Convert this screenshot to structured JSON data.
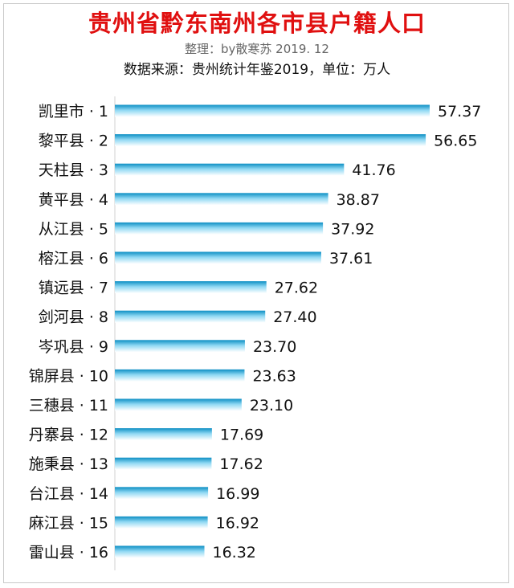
{
  "title": "贵州省黔东南州各市县户籍人口",
  "subtitle_credit": "整理：by散寒苏 2019. 12",
  "subtitle_source": "数据来源：贵州统计年鉴2019，单位：万人",
  "colors": {
    "title": "#e01010",
    "bar_top": "#0d8fc4",
    "bar_mid": "#8fd8f3",
    "bar_bottom": "#ffffff"
  },
  "chart_data": {
    "type": "bar",
    "orientation": "horizontal",
    "categories": [
      "凯里市 · 1",
      "黎平县 · 2",
      "天柱县 · 3",
      "黄平县 · 4",
      "从江县 · 5",
      "榕江县 · 6",
      "镇远县 · 7",
      "剑河县 · 8",
      "岑巩县 · 9",
      "锦屏县 · 10",
      "三穗县 · 11",
      "丹寨县 · 12",
      "施秉县 · 13",
      "台江县 · 14",
      "麻江县 · 15",
      "雷山县 · 16"
    ],
    "values": [
      57.37,
      56.65,
      41.76,
      38.87,
      37.92,
      37.61,
      27.62,
      27.4,
      23.7,
      23.63,
      23.1,
      17.69,
      17.62,
      16.99,
      16.92,
      16.32
    ],
    "value_labels": [
      "57.37",
      "56.65",
      "41.76",
      "38.87",
      "37.92",
      "37.61",
      "27.62",
      "27.40",
      "23.70",
      "23.63",
      "23.10",
      "17.69",
      "17.62",
      "16.99",
      "16.92",
      "16.32"
    ],
    "xlim": [
      0,
      57.37
    ],
    "grid": false,
    "legend": "none"
  }
}
